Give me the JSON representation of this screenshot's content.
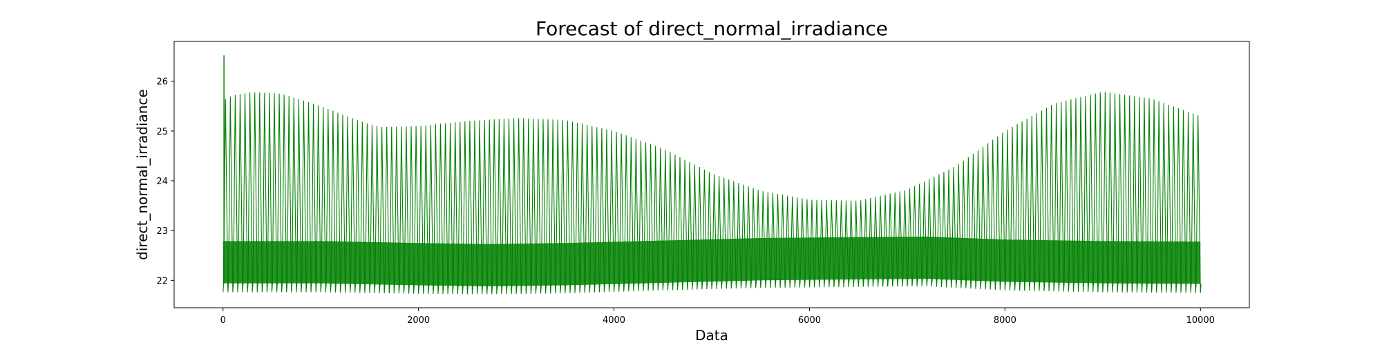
{
  "chart_data": {
    "type": "line",
    "title": "Forecast of direct_normal_irradiance",
    "xlabel": "Data",
    "ylabel": "direct_normal_irradiance",
    "xlim": [
      -500,
      10500
    ],
    "ylim": [
      21.45,
      26.8
    ],
    "x_ticks": [
      0,
      2000,
      4000,
      6000,
      8000,
      10000
    ],
    "x_tick_labels": [
      "0",
      "2000",
      "4000",
      "6000",
      "8000",
      "10000"
    ],
    "y_ticks": [
      22,
      23,
      24,
      25,
      26
    ],
    "y_tick_labels": [
      "22",
      "23",
      "24",
      "25",
      "26"
    ],
    "grid": false,
    "legend": "none",
    "series": [
      {
        "color": "#008000",
        "x_range": [
          0,
          10000
        ],
        "oscillation_period_x": 50,
        "initial_spike": {
          "x": 10,
          "y": 26.52
        },
        "upper_envelope": {
          "x": [
            0,
            100,
            300,
            600,
            1000,
            1400,
            1600,
            2000,
            2500,
            3000,
            3500,
            4000,
            4500,
            5000,
            5500,
            6000,
            6500,
            7000,
            7500,
            8000,
            8500,
            9000,
            9500,
            10000
          ],
          "y": [
            25.62,
            25.72,
            25.78,
            25.75,
            25.5,
            25.2,
            25.08,
            25.1,
            25.2,
            25.26,
            25.22,
            25.0,
            24.65,
            24.15,
            23.8,
            23.62,
            23.6,
            23.82,
            24.3,
            25.0,
            25.55,
            25.79,
            25.65,
            25.3
          ]
        },
        "lower_envelope": {
          "x": [
            0,
            1000,
            2000,
            2700,
            3500,
            4500,
            5500,
            6500,
            7200,
            8000,
            9000,
            10000
          ],
          "y": [
            21.76,
            21.76,
            21.73,
            21.72,
            21.74,
            21.8,
            21.85,
            21.87,
            21.88,
            21.8,
            21.76,
            21.75
          ]
        },
        "trough_band": {
          "x": [
            0,
            1000,
            2000,
            2700,
            3500,
            4500,
            5500,
            6500,
            7200,
            8000,
            9000,
            10000
          ],
          "y": [
            21.94,
            21.94,
            21.9,
            21.88,
            21.9,
            21.95,
            22.0,
            22.02,
            22.03,
            21.97,
            21.94,
            21.93
          ]
        }
      }
    ]
  }
}
